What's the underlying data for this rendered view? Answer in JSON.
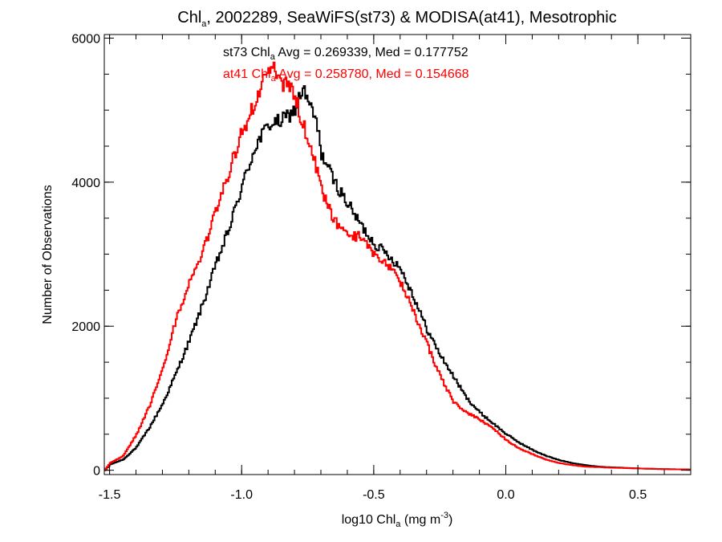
{
  "chart_data": {
    "type": "line",
    "step": true,
    "title": {
      "prefix": "Chl",
      "prefix_sub": "a",
      "rest": ", 2002289, SeaWiFS(st73) & MODISA(at41), Mesotrophic"
    },
    "xlabel": {
      "prefix": "log10 Chl",
      "sub": "a",
      "mid": " (mg m",
      "sup": "-3",
      "suffix": ")"
    },
    "ylabel": "Number of Observations",
    "xlim": [
      -1.52,
      0.7
    ],
    "ylim": [
      -60,
      6050
    ],
    "x_ticks": [
      {
        "value": -1.5,
        "label": "-1.5"
      },
      {
        "value": -1.0,
        "label": "-1.0"
      },
      {
        "value": -0.5,
        "label": "-0.5"
      },
      {
        "value": 0.0,
        "label": "0.0"
      },
      {
        "value": 0.5,
        "label": "0.5"
      }
    ],
    "x_minor_step": 0.1,
    "y_ticks": [
      {
        "value": 0,
        "label": "0"
      },
      {
        "value": 2000,
        "label": "2000"
      },
      {
        "value": 4000,
        "label": "4000"
      },
      {
        "value": 6000,
        "label": "6000"
      }
    ],
    "y_minor_step": 500,
    "grid": false,
    "annotations": [
      {
        "series": "st73",
        "color": "#000000",
        "parts": [
          "st73 Chl",
          "a",
          " Avg = 0.269339, Med = 0.177752"
        ]
      },
      {
        "series": "at41",
        "color": "#ff0000",
        "parts": [
          "at41 Chl",
          "a",
          " Avg = 0.258780, Med = 0.154668"
        ]
      }
    ],
    "series": [
      {
        "id": "st73",
        "color": "#000000",
        "points": [
          [
            -1.52,
            0
          ],
          [
            -1.5,
            80
          ],
          [
            -1.45,
            150
          ],
          [
            -1.4,
            320
          ],
          [
            -1.35,
            600
          ],
          [
            -1.3,
            930
          ],
          [
            -1.25,
            1350
          ],
          [
            -1.2,
            1800
          ],
          [
            -1.15,
            2300
          ],
          [
            -1.1,
            2850
          ],
          [
            -1.05,
            3350
          ],
          [
            -1.0,
            3950
          ],
          [
            -0.95,
            4500
          ],
          [
            -0.9,
            4800
          ],
          [
            -0.85,
            4850
          ],
          [
            -0.8,
            5000
          ],
          [
            -0.77,
            5300
          ],
          [
            -0.75,
            5100
          ],
          [
            -0.72,
            4850
          ],
          [
            -0.7,
            4400
          ],
          [
            -0.65,
            4000
          ],
          [
            -0.6,
            3700
          ],
          [
            -0.55,
            3400
          ],
          [
            -0.5,
            3150
          ],
          [
            -0.45,
            3000
          ],
          [
            -0.4,
            2800
          ],
          [
            -0.35,
            2400
          ],
          [
            -0.3,
            1950
          ],
          [
            -0.25,
            1600
          ],
          [
            -0.2,
            1300
          ],
          [
            -0.15,
            1000
          ],
          [
            -0.1,
            800
          ],
          [
            -0.05,
            650
          ],
          [
            0.0,
            500
          ],
          [
            0.05,
            380
          ],
          [
            0.1,
            280
          ],
          [
            0.15,
            200
          ],
          [
            0.2,
            140
          ],
          [
            0.25,
            100
          ],
          [
            0.3,
            70
          ],
          [
            0.35,
            50
          ],
          [
            0.4,
            40
          ],
          [
            0.5,
            25
          ],
          [
            0.6,
            15
          ],
          [
            0.7,
            10
          ]
        ]
      },
      {
        "id": "at41",
        "color": "#ff0000",
        "points": [
          [
            -1.52,
            0
          ],
          [
            -1.5,
            100
          ],
          [
            -1.45,
            200
          ],
          [
            -1.4,
            500
          ],
          [
            -1.35,
            900
          ],
          [
            -1.3,
            1400
          ],
          [
            -1.25,
            2100
          ],
          [
            -1.2,
            2600
          ],
          [
            -1.15,
            3000
          ],
          [
            -1.1,
            3600
          ],
          [
            -1.05,
            4150
          ],
          [
            -1.0,
            4700
          ],
          [
            -0.95,
            5100
          ],
          [
            -0.9,
            5600
          ],
          [
            -0.88,
            5550
          ],
          [
            -0.85,
            5400
          ],
          [
            -0.8,
            5200
          ],
          [
            -0.77,
            4800
          ],
          [
            -0.75,
            4600
          ],
          [
            -0.72,
            4200
          ],
          [
            -0.7,
            3900
          ],
          [
            -0.68,
            3700
          ],
          [
            -0.65,
            3450
          ],
          [
            -0.6,
            3250
          ],
          [
            -0.55,
            3250
          ],
          [
            -0.5,
            3000
          ],
          [
            -0.45,
            2850
          ],
          [
            -0.4,
            2600
          ],
          [
            -0.35,
            2200
          ],
          [
            -0.3,
            1750
          ],
          [
            -0.25,
            1300
          ],
          [
            -0.2,
            950
          ],
          [
            -0.15,
            800
          ],
          [
            -0.1,
            700
          ],
          [
            -0.05,
            580
          ],
          [
            0.0,
            420
          ],
          [
            0.05,
            300
          ],
          [
            0.1,
            220
          ],
          [
            0.15,
            150
          ],
          [
            0.2,
            100
          ],
          [
            0.25,
            70
          ],
          [
            0.3,
            50
          ],
          [
            0.4,
            35
          ],
          [
            0.5,
            25
          ],
          [
            0.6,
            15
          ],
          [
            0.7,
            10
          ]
        ]
      }
    ]
  }
}
